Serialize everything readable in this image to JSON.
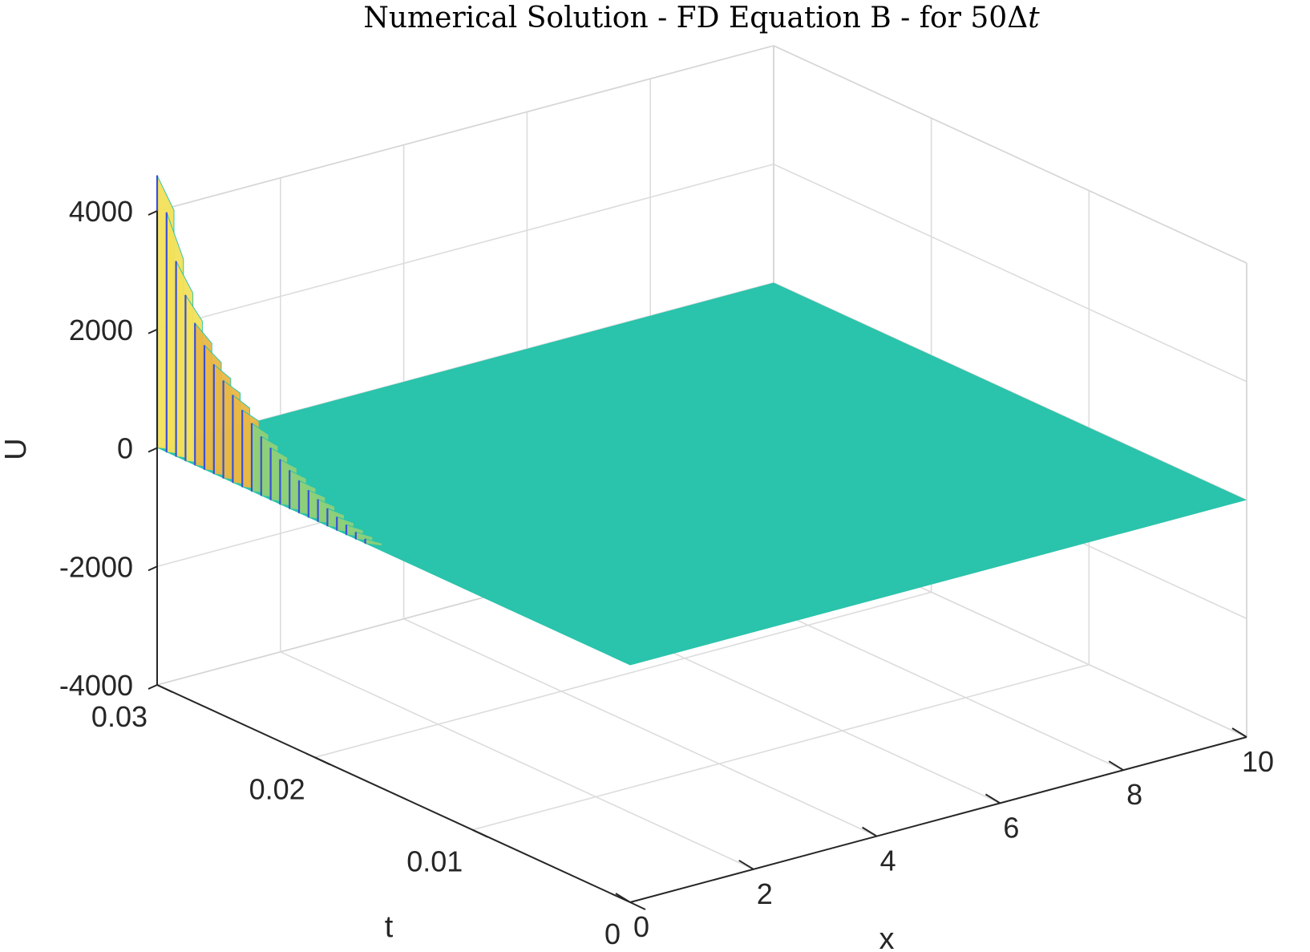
{
  "chart_data": {
    "type": "surface",
    "title": "Numerical Solution - FD Equation B - for 50Δt",
    "title_parts": {
      "text": "Numerical Solution - FD Equation B - for 50Δ",
      "italic": "t"
    },
    "xlabel": "x",
    "ylabel": "t",
    "zlabel": "U",
    "xlim": [
      0,
      10
    ],
    "ylim": [
      0,
      0.03
    ],
    "zlim": [
      -4000,
      4000
    ],
    "x_ticks": [
      "0",
      "2",
      "4",
      "6",
      "8",
      "10"
    ],
    "y_ticks": [
      "0",
      "0.01",
      "0.02",
      "0.03"
    ],
    "z_ticks": [
      "-4000",
      "-2000",
      "0",
      "2000",
      "4000"
    ],
    "grid": true,
    "colormap": "parula",
    "colors": {
      "surface_base": "#2ac3ab",
      "peak_high": "#f4e15a",
      "peak_mid": "#e9b845",
      "peak_edge": "#3b4fd8"
    },
    "surface_description_values": {
      "baseline_U": 0,
      "spike_x": 0,
      "spike_t_range": [
        0.0,
        0.03
      ],
      "peak_U_at_t_0_03": 4600,
      "notes_visible": []
    },
    "spike_ridges": [
      {
        "t": 0.03,
        "u": 4600
      },
      {
        "t": 0.0294,
        "u": 4050
      },
      {
        "t": 0.0288,
        "u": 3300
      },
      {
        "t": 0.0282,
        "u": 2800
      },
      {
        "t": 0.0276,
        "u": 2400
      },
      {
        "t": 0.027,
        "u": 2100
      },
      {
        "t": 0.0264,
        "u": 1850
      },
      {
        "t": 0.0258,
        "u": 1650
      },
      {
        "t": 0.0252,
        "u": 1480
      },
      {
        "t": 0.0246,
        "u": 1300
      },
      {
        "t": 0.024,
        "u": 1150
      },
      {
        "t": 0.0234,
        "u": 1000
      },
      {
        "t": 0.0228,
        "u": 880
      },
      {
        "t": 0.0222,
        "u": 760
      },
      {
        "t": 0.0216,
        "u": 650
      },
      {
        "t": 0.021,
        "u": 550
      },
      {
        "t": 0.0204,
        "u": 460
      },
      {
        "t": 0.0198,
        "u": 380
      },
      {
        "t": 0.0192,
        "u": 300
      },
      {
        "t": 0.0186,
        "u": 230
      },
      {
        "t": 0.018,
        "u": 170
      },
      {
        "t": 0.0174,
        "u": 120
      },
      {
        "t": 0.0168,
        "u": 80
      },
      {
        "t": 0.0162,
        "u": 45
      }
    ]
  }
}
